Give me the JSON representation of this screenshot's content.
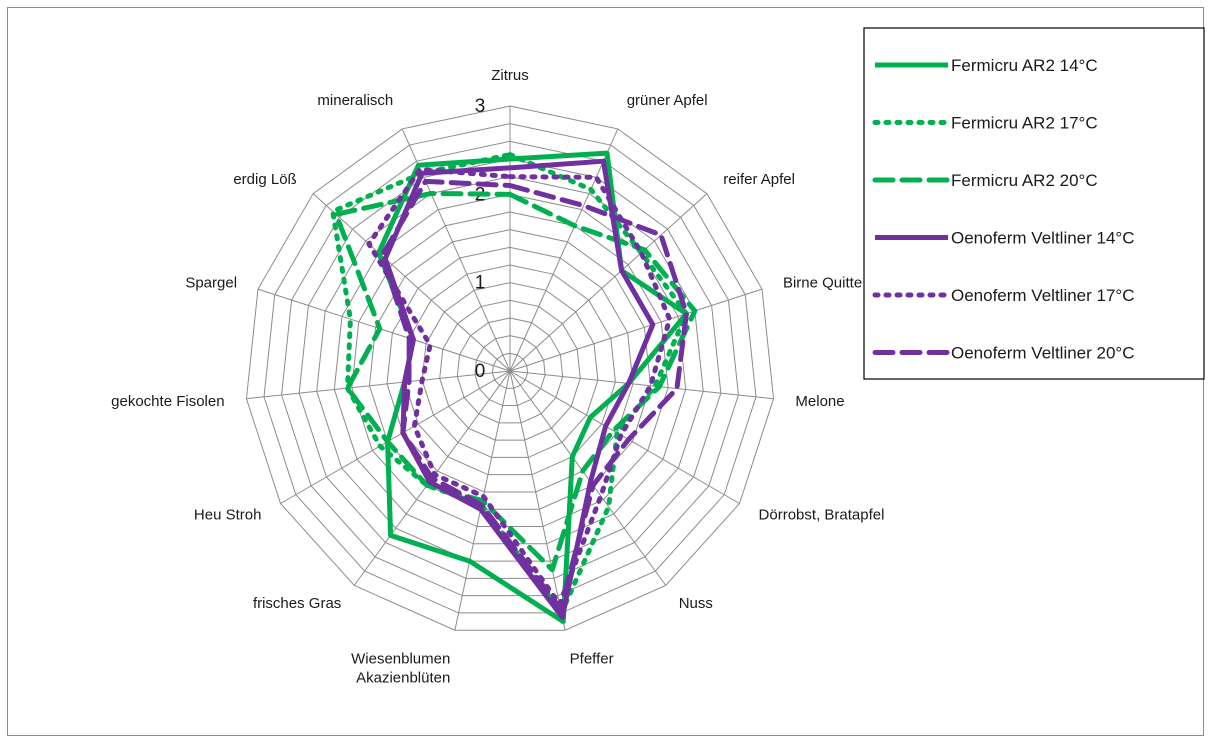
{
  "chart_data": {
    "type": "radar",
    "categories": [
      "Zitrus",
      "grüner Apfel",
      "reifer Apfel",
      "Birne Quitte",
      "Melone",
      "Dörrobst, Bratapfel",
      "Nuss",
      "Pfeffer",
      "Wiesenblumen Akazienblüten",
      "frisches Gras",
      "Heu Stroh",
      "gekochte Fisolen",
      "Spargel",
      "erdig Löß",
      "mineralisch"
    ],
    "category_lines": {
      "Wiesenblumen Akazienblüten": [
        "Wiesenblumen",
        "Akazienblüten"
      ]
    },
    "rlim": [
      0,
      3
    ],
    "ticks": [
      "0",
      "1",
      "2",
      "3"
    ],
    "legend_position": "top-right",
    "series": [
      {
        "name": "Fermicru AR2 14°C",
        "color": "#00b050",
        "style": "solid",
        "values": [
          2.4,
          2.7,
          1.7,
          2.1,
          1.35,
          1.05,
          1.2,
          2.9,
          2.2,
          2.3,
          1.6,
          1.2,
          1.15,
          2.0,
          2.55
        ]
      },
      {
        "name": "Fermicru AR2 17°C",
        "color": "#00b050",
        "style": "dotted",
        "values": [
          2.45,
          2.25,
          2.0,
          2.1,
          1.65,
          1.4,
          1.9,
          2.8,
          1.55,
          1.6,
          1.7,
          1.85,
          1.9,
          2.7,
          2.45
        ]
      },
      {
        "name": "Fermicru AR2 20°C",
        "color": "#00b050",
        "style": "dashed",
        "values": [
          2.0,
          1.8,
          2.05,
          2.2,
          1.7,
          1.35,
          1.4,
          2.3,
          1.5,
          1.6,
          1.6,
          1.85,
          1.55,
          2.65,
          2.2
        ]
      },
      {
        "name": "Oenoferm Veltliner 14°C",
        "color": "#7030a0",
        "style": "solid",
        "values": [
          2.3,
          2.6,
          1.7,
          1.7,
          1.35,
          1.25,
          1.55,
          2.85,
          1.6,
          1.55,
          1.4,
          1.2,
          1.15,
          1.9,
          2.45
        ]
      },
      {
        "name": "Oenoferm Veltliner 17°C",
        "color": "#7030a0",
        "style": "dotted",
        "values": [
          2.2,
          2.4,
          2.0,
          1.9,
          1.6,
          1.45,
          1.75,
          2.7,
          1.45,
          1.45,
          1.25,
          1.0,
          0.95,
          2.15,
          2.5
        ]
      },
      {
        "name": "Oenoferm Veltliner 20°C",
        "color": "#7030a0",
        "style": "dashed",
        "values": [
          2.1,
          2.05,
          2.3,
          2.1,
          1.9,
          1.55,
          1.6,
          2.75,
          1.55,
          1.5,
          1.4,
          1.15,
          1.2,
          1.95,
          2.35
        ]
      }
    ]
  }
}
